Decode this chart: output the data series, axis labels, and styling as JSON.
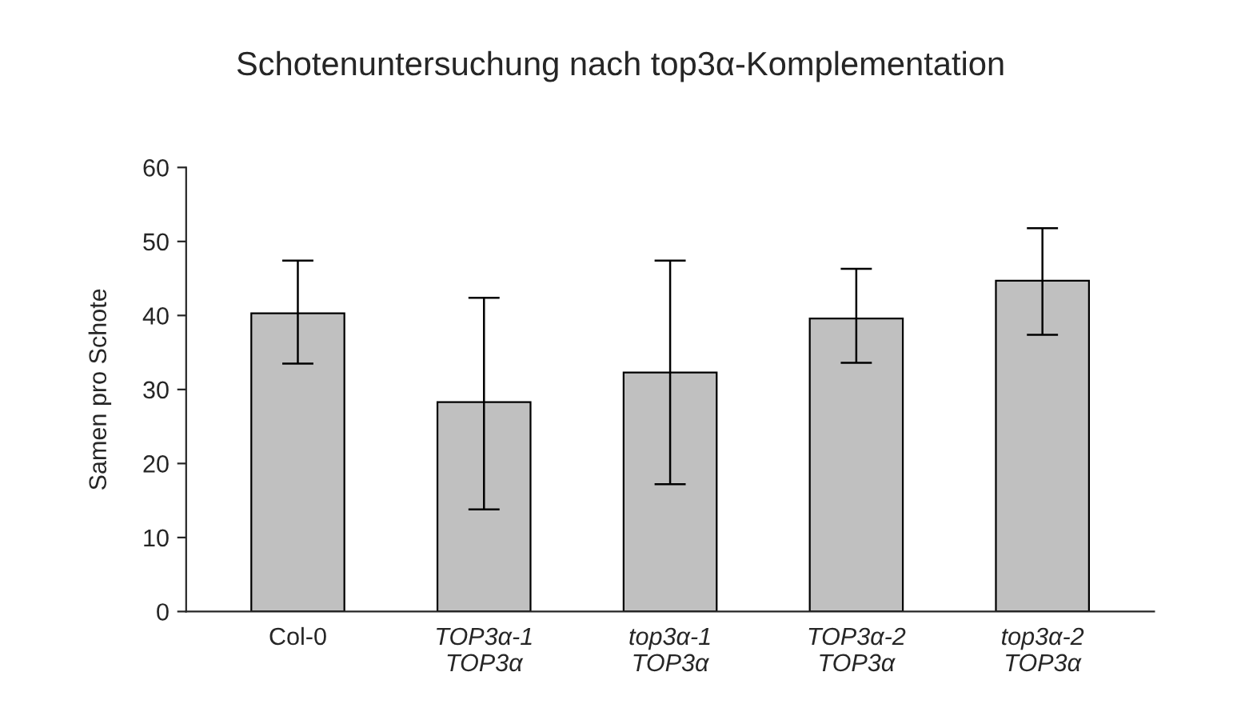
{
  "chart_data": {
    "type": "bar",
    "title": "Schotenuntersuchung nach top3α-Komplementation",
    "ylabel": "Samen pro Schote",
    "categories": [
      "Col-0",
      "TOP3α-1\nTOP3α",
      "top3α-1\nTOP3α",
      "TOP3α-2\nTOP3α",
      "top3α-2\nTOP3α"
    ],
    "values": [
      40.3,
      28.3,
      32.3,
      39.6,
      44.7
    ],
    "errors": [
      [
        33.5,
        47.4
      ],
      [
        13.8,
        42.4
      ],
      [
        17.2,
        47.4
      ],
      [
        33.6,
        46.3
      ],
      [
        37.4,
        51.8
      ]
    ],
    "color": "#c0c0c0",
    "ylim": [
      0,
      60
    ],
    "yticks": [
      0,
      10,
      20,
      30,
      40,
      50,
      60
    ],
    "grid": false,
    "legend": false
  }
}
